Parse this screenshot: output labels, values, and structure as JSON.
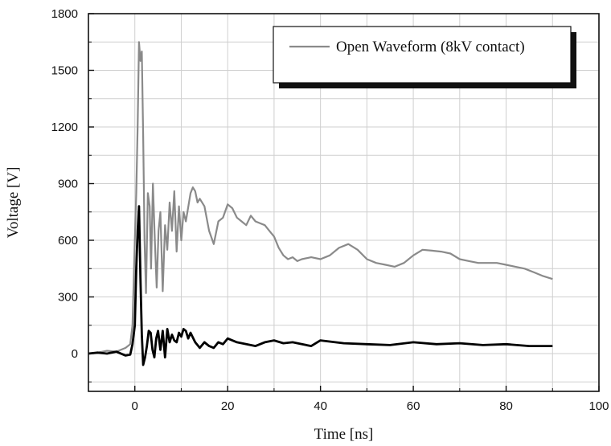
{
  "chart_data": {
    "type": "line",
    "title": "",
    "xlabel": "Time [ns]",
    "ylabel": "Voltage [V]",
    "xlim": [
      -10,
      100
    ],
    "ylim": [
      -200,
      1800
    ],
    "x_ticks": [
      0,
      20,
      40,
      60,
      80,
      100
    ],
    "y_ticks": [
      0,
      300,
      600,
      900,
      1200,
      1500,
      1800
    ],
    "grid": true,
    "legend_position": "top-right",
    "series": [
      {
        "name": "Open Waveform (8kV contact)",
        "color": "#8a8a8a",
        "x": [
          -10,
          -8,
          -6,
          -4,
          -2,
          -1,
          -0.5,
          0,
          0.3,
          0.6,
          0.9,
          1.2,
          1.5,
          1.8,
          2.1,
          2.4,
          2.8,
          3.2,
          3.5,
          3.9,
          4.3,
          4.7,
          5.1,
          5.5,
          6.0,
          6.5,
          7.0,
          7.5,
          8.0,
          8.5,
          9.0,
          9.5,
          10.0,
          10.5,
          11.0,
          12.0,
          12.5,
          13.0,
          13.5,
          14.0,
          15.0,
          16.0,
          17.0,
          18.0,
          19.0,
          20.0,
          21.0,
          22.0,
          23.0,
          24.0,
          25.0,
          26.0,
          27.0,
          28.0,
          29.0,
          30.0,
          31.0,
          32.0,
          33.0,
          34.0,
          35.0,
          36.0,
          38.0,
          40.0,
          42.0,
          44.0,
          46.0,
          48.0,
          50.0,
          52.0,
          54.0,
          56.0,
          58.0,
          60.0,
          62.0,
          64.0,
          66.0,
          68.0,
          70.0,
          72.0,
          74.0,
          76.0,
          78.0,
          80.0,
          82.0,
          84.0,
          86.0,
          88.0,
          90.0
        ],
        "values": [
          0,
          5,
          15,
          10,
          30,
          50,
          150,
          600,
          850,
          1200,
          1650,
          1550,
          1600,
          1150,
          600,
          320,
          850,
          780,
          450,
          900,
          600,
          350,
          650,
          750,
          330,
          680,
          550,
          800,
          650,
          860,
          540,
          780,
          600,
          750,
          700,
          850,
          880,
          860,
          800,
          820,
          780,
          650,
          580,
          700,
          720,
          790,
          770,
          720,
          700,
          680,
          730,
          700,
          690,
          680,
          650,
          620,
          560,
          520,
          500,
          510,
          490,
          500,
          510,
          500,
          520,
          560,
          580,
          550,
          500,
          480,
          470,
          460,
          480,
          520,
          550,
          545,
          540,
          530,
          500,
          490,
          480,
          480,
          480,
          470,
          460,
          450,
          430,
          410,
          395
        ]
      },
      {
        "name": "",
        "color": "#000000",
        "x": [
          -10,
          -8,
          -6,
          -4,
          -2,
          -1,
          -0.5,
          0,
          0.3,
          0.6,
          0.9,
          1.2,
          1.5,
          1.8,
          2.2,
          2.6,
          3.0,
          3.4,
          3.8,
          4.2,
          4.6,
          5.0,
          5.5,
          6.0,
          6.5,
          7.0,
          7.5,
          8.0,
          8.5,
          9.0,
          9.5,
          10.0,
          10.5,
          11.0,
          11.5,
          12.0,
          13.0,
          14.0,
          15.0,
          16.0,
          17.0,
          18.0,
          19.0,
          20.0,
          22.0,
          24.0,
          26.0,
          28.0,
          30.0,
          32.0,
          34.0,
          36.0,
          38.0,
          40.0,
          45.0,
          50.0,
          55.0,
          60.0,
          65.0,
          70.0,
          75.0,
          80.0,
          85.0,
          90.0
        ],
        "values": [
          0,
          5,
          0,
          10,
          -10,
          -5,
          50,
          150,
          450,
          650,
          780,
          400,
          100,
          -60,
          -20,
          40,
          120,
          110,
          20,
          -20,
          80,
          120,
          20,
          120,
          -20,
          130,
          60,
          100,
          70,
          60,
          110,
          90,
          130,
          120,
          80,
          110,
          60,
          30,
          60,
          40,
          30,
          60,
          50,
          80,
          60,
          50,
          40,
          60,
          70,
          55,
          60,
          50,
          40,
          70,
          55,
          50,
          45,
          60,
          50,
          55,
          45,
          50,
          40,
          40
        ]
      }
    ]
  }
}
